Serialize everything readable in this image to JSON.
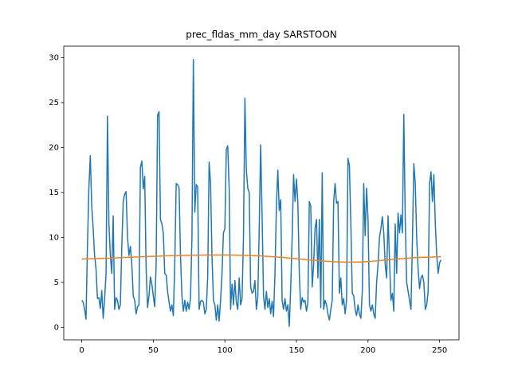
{
  "chart_data": {
    "type": "line",
    "title": "prec_fldas_mm_day SARSTOON",
    "x": [
      0,
      1,
      2,
      3,
      4,
      5,
      6,
      7,
      8,
      9,
      10,
      11,
      12,
      13,
      14,
      15,
      16,
      17,
      18,
      19,
      20,
      21,
      22,
      23,
      24,
      25,
      26,
      27,
      28,
      29,
      30,
      31,
      32,
      33,
      34,
      35,
      36,
      37,
      38,
      39,
      40,
      41,
      42,
      43,
      44,
      45,
      46,
      47,
      48,
      49,
      50,
      51,
      52,
      53,
      54,
      55,
      56,
      57,
      58,
      59,
      60,
      61,
      62,
      63,
      64,
      65,
      66,
      67,
      68,
      69,
      70,
      71,
      72,
      73,
      74,
      75,
      76,
      77,
      78,
      79,
      80,
      81,
      82,
      83,
      84,
      85,
      86,
      87,
      88,
      89,
      90,
      91,
      92,
      93,
      94,
      95,
      96,
      97,
      98,
      99,
      100,
      101,
      102,
      103,
      104,
      105,
      106,
      107,
      108,
      109,
      110,
      111,
      112,
      113,
      114,
      115,
      116,
      117,
      118,
      119,
      120,
      121,
      122,
      123,
      124,
      125,
      126,
      127,
      128,
      129,
      130,
      131,
      132,
      133,
      134,
      135,
      136,
      137,
      138,
      139,
      140,
      141,
      142,
      143,
      144,
      145,
      146,
      147,
      148,
      149,
      150,
      151,
      152,
      153,
      154,
      155,
      156,
      157,
      158,
      159,
      160,
      161,
      162,
      163,
      164,
      165,
      166,
      167,
      168,
      169,
      170,
      171,
      172,
      173,
      174,
      175,
      176,
      177,
      178,
      179,
      180,
      181,
      182,
      183,
      184,
      185,
      186,
      187,
      188,
      189,
      190,
      191,
      192,
      193,
      194,
      195,
      196,
      197,
      198,
      199,
      200,
      201,
      202,
      203,
      204,
      205,
      206,
      207,
      208,
      209,
      210,
      211,
      212,
      213,
      214,
      215,
      216,
      217,
      218,
      219,
      220,
      221,
      222,
      223,
      224,
      225,
      226,
      227,
      228,
      229,
      230,
      231,
      232,
      233,
      234,
      235,
      236,
      237,
      238,
      239,
      240,
      241,
      242,
      243,
      244,
      245,
      246,
      247,
      248,
      249,
      250,
      251
    ],
    "series": [
      {
        "color": "#1f77b4",
        "values": [
          3.0,
          2.8,
          2.0,
          0.9,
          9.0,
          15.5,
          19.1,
          13.5,
          11.0,
          8.0,
          6.5,
          3.2,
          3.3,
          2.1,
          4.1,
          1.0,
          3.2,
          6.0,
          23.5,
          11.5,
          8.0,
          6.0,
          12.4,
          2.0,
          3.3,
          3.0,
          2.0,
          2.5,
          9.0,
          14.0,
          14.8,
          15.1,
          10.0,
          8.0,
          9.0,
          7.0,
          3.5,
          3.0,
          1.5,
          2.3,
          2.5,
          17.8,
          18.5,
          15.4,
          16.8,
          6.5,
          2.2,
          3.5,
          5.6,
          4.8,
          3.5,
          2.3,
          7.0,
          23.6,
          24.0,
          12.0,
          11.5,
          10.5,
          6.0,
          5.8,
          4.0,
          2.8,
          1.8,
          2.5,
          1.3,
          7.0,
          16.0,
          15.9,
          15.5,
          8.0,
          3.5,
          1.8,
          3.0,
          1.8,
          2.8,
          2.0,
          3.3,
          10.0,
          29.8,
          12.8,
          15.9,
          15.6,
          2.0,
          2.9,
          3.0,
          2.8,
          1.5,
          2.0,
          5.5,
          18.4,
          16.0,
          8.0,
          3.0,
          2.5,
          0.8,
          2.5,
          0.7,
          3.0,
          6.0,
          10.5,
          11.0,
          19.8,
          20.2,
          15.5,
          2.0,
          4.8,
          2.5,
          5.2,
          2.8,
          2.0,
          5.5,
          2.5,
          3.2,
          10.0,
          25.5,
          17.5,
          15.5,
          15.0,
          4.5,
          3.8,
          4.0,
          5.2,
          2.0,
          3.3,
          11.0,
          20.3,
          12.5,
          3.5,
          2.0,
          4.0,
          2.2,
          3.2,
          1.5,
          2.9,
          1.2,
          6.0,
          13.5,
          17.5,
          13.0,
          14.2,
          3.0,
          2.0,
          3.2,
          1.8,
          2.5,
          0.1,
          4.5,
          10.0,
          17.0,
          14.0,
          16.5,
          13.8,
          6.0,
          2.0,
          3.3,
          2.8,
          3.0,
          1.8,
          2.8,
          14.0,
          13.5,
          4.5,
          7.0,
          11.0,
          12.0,
          5.5,
          12.0,
          2.2,
          17.2,
          2.0,
          3.0,
          2.5,
          1.5,
          0.8,
          2.0,
          3.0,
          14.0,
          16.0,
          13.8,
          14.0,
          3.8,
          5.5,
          2.5,
          3.2,
          1.5,
          3.0,
          18.8,
          18.0,
          11.5,
          3.8,
          3.5,
          2.0,
          1.3,
          2.5,
          1.5,
          1.0,
          4.0,
          16.0,
          10.2,
          15.5,
          12.0,
          2.5,
          1.8,
          2.5,
          1.5,
          1.0,
          5.0,
          7.0,
          10.0,
          11.0,
          12.3,
          10.5,
          7.0,
          5.5,
          12.4,
          7.5,
          3.0,
          3.8,
          1.8,
          11.5,
          6.0,
          12.7,
          10.5,
          12.5,
          10.5,
          23.7,
          12.0,
          5.0,
          4.0,
          3.0,
          2.0,
          9.5,
          18.2,
          16.0,
          10.0,
          6.5,
          4.3,
          5.5,
          5.8,
          5.0,
          2.0,
          2.5,
          4.0,
          16.0,
          17.3,
          14.0,
          17.0,
          11.5,
          8.0,
          6.0,
          7.2,
          7.5
        ]
      },
      {
        "color": "#ff7f0e",
        "values": [
          7.6,
          7.6,
          7.61,
          7.61,
          7.62,
          7.62,
          7.63,
          7.63,
          7.64,
          7.64,
          7.65,
          7.65,
          7.66,
          7.66,
          7.67,
          7.67,
          7.68,
          7.68,
          7.69,
          7.7,
          7.7,
          7.71,
          7.72,
          7.72,
          7.73,
          7.74,
          7.74,
          7.75,
          7.76,
          7.76,
          7.77,
          7.78,
          7.78,
          7.79,
          7.8,
          7.8,
          7.81,
          7.82,
          7.82,
          7.83,
          7.84,
          7.84,
          7.85,
          7.86,
          7.86,
          7.87,
          7.88,
          7.88,
          7.89,
          7.89,
          7.9,
          7.91,
          7.91,
          7.92,
          7.92,
          7.93,
          7.94,
          7.94,
          7.95,
          7.95,
          7.96,
          7.96,
          7.97,
          7.97,
          7.98,
          7.98,
          7.99,
          7.99,
          8.0,
          8.0,
          8.0,
          8.01,
          8.01,
          8.01,
          8.02,
          8.02,
          8.02,
          8.03,
          8.03,
          8.03,
          8.03,
          8.04,
          8.04,
          8.04,
          8.04,
          8.04,
          8.05,
          8.05,
          8.05,
          8.05,
          8.05,
          8.05,
          8.05,
          8.05,
          8.05,
          8.05,
          8.05,
          8.05,
          8.05,
          8.05,
          8.05,
          8.05,
          8.05,
          8.05,
          8.05,
          8.04,
          8.04,
          8.04,
          8.04,
          8.03,
          8.03,
          8.03,
          8.02,
          8.02,
          8.01,
          8.01,
          8.0,
          8.0,
          7.99,
          7.98,
          7.98,
          7.97,
          7.96,
          7.96,
          7.95,
          7.94,
          7.93,
          7.92,
          7.91,
          7.9,
          7.89,
          7.88,
          7.87,
          7.86,
          7.85,
          7.84,
          7.83,
          7.82,
          7.8,
          7.79,
          7.78,
          7.76,
          7.75,
          7.74,
          7.72,
          7.71,
          7.7,
          7.68,
          7.67,
          7.65,
          7.64,
          7.62,
          7.61,
          7.59,
          7.58,
          7.56,
          7.55,
          7.53,
          7.52,
          7.5,
          7.49,
          7.47,
          7.46,
          7.45,
          7.43,
          7.42,
          7.41,
          7.39,
          7.38,
          7.37,
          7.36,
          7.35,
          7.34,
          7.33,
          7.32,
          7.31,
          7.3,
          7.29,
          7.29,
          7.28,
          7.27,
          7.27,
          7.26,
          7.26,
          7.25,
          7.25,
          7.25,
          7.25,
          7.25,
          7.25,
          7.25,
          7.25,
          7.26,
          7.26,
          7.27,
          7.27,
          7.28,
          7.29,
          7.3,
          7.31,
          7.32,
          7.33,
          7.34,
          7.35,
          7.37,
          7.38,
          7.39,
          7.41,
          7.42,
          7.44,
          7.45,
          7.47,
          7.48,
          7.5,
          7.51,
          7.53,
          7.54,
          7.56,
          7.57,
          7.59,
          7.6,
          7.61,
          7.63,
          7.64,
          7.65,
          7.67,
          7.68,
          7.69,
          7.7,
          7.71,
          7.72,
          7.73,
          7.74,
          7.75,
          7.76,
          7.77,
          7.77,
          7.78,
          7.79,
          7.79,
          7.8,
          7.8,
          7.81,
          7.81,
          7.82,
          7.82,
          7.83,
          7.83,
          7.84,
          7.84,
          7.85,
          7.85
        ]
      }
    ],
    "xlim": [
      -12.55,
      263.55
    ],
    "xticks": [
      0,
      50,
      100,
      150,
      200,
      250
    ],
    "ylim": [
      -1.39,
      31.28
    ],
    "yticks": [
      0,
      5,
      10,
      15,
      20,
      25,
      30
    ],
    "grid": false
  }
}
